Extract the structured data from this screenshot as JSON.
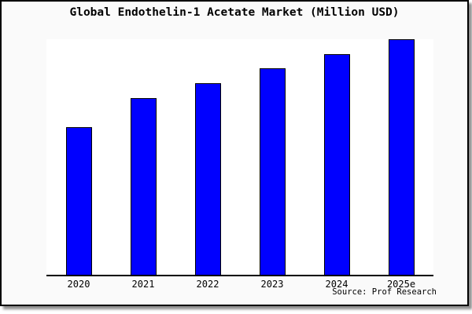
{
  "window": {
    "title": "Global Endothelin-1 Acetate Market (Million USD)",
    "source": "Source: Prof Research"
  },
  "chart_data": {
    "type": "bar",
    "title": "Global Endothelin-1 Acetate Market (Million USD)",
    "categories": [
      "2020",
      "2021",
      "2022",
      "2023",
      "2024",
      "2025e"
    ],
    "values": [
      62.7,
      75.1,
      81.4,
      87.8,
      93.8,
      100
    ],
    "unit": "relative bar height, percent of tallest bar (no y-axis labels shown in chart)",
    "xlabel": "",
    "ylabel": "",
    "ylim": [
      0,
      100
    ],
    "grid": false,
    "legend": false,
    "source_label": "Source: Prof Research",
    "bar_color": "#0000ff",
    "bar_border_color": "#000000"
  },
  "colors": {
    "frame_background": "#fafafa",
    "plot_background": "#ffffff",
    "bar_fill": "#0000ff",
    "border": "#000000",
    "shadow": "#8f8f8f"
  }
}
